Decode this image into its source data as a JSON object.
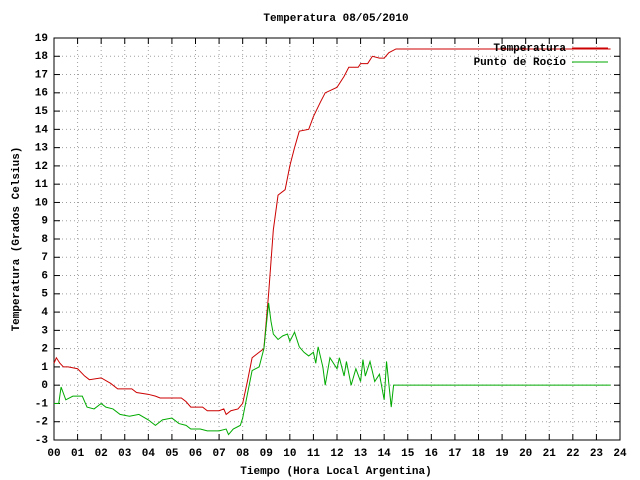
{
  "chart_data": {
    "type": "line",
    "title": "Temperatura 08/05/2010",
    "x_label": "Tiempo (Hora Local Argentina)",
    "y_label": "Temperatura (Grados Celsius)",
    "xlim": [
      0,
      24
    ],
    "xticks": [
      {
        "value": 0,
        "label": "00"
      },
      {
        "value": 1,
        "label": "01"
      },
      {
        "value": 2,
        "label": "02"
      },
      {
        "value": 3,
        "label": "03"
      },
      {
        "value": 4,
        "label": "04"
      },
      {
        "value": 5,
        "label": "05"
      },
      {
        "value": 6,
        "label": "06"
      },
      {
        "value": 7,
        "label": "07"
      },
      {
        "value": 8,
        "label": "08"
      },
      {
        "value": 9,
        "label": "09"
      },
      10,
      11,
      12,
      13,
      14,
      15,
      16,
      17,
      18,
      19,
      20,
      21,
      22,
      23,
      24
    ],
    "ylim": [
      -3,
      19
    ],
    "yticks": [
      -3,
      -2,
      -1,
      0,
      1,
      2,
      3,
      4,
      5,
      6,
      7,
      8,
      9,
      10,
      11,
      12,
      13,
      14,
      15,
      16,
      17,
      18,
      19
    ],
    "grid": true,
    "legend": "top-right",
    "series": [
      {
        "name": "Temperatura",
        "color": "#cc0000",
        "x": [
          0,
          0.1,
          0.25,
          0.4,
          0.6,
          1.0,
          1.3,
          1.5,
          2.0,
          2.4,
          2.7,
          3.0,
          3.3,
          3.5,
          4.0,
          4.3,
          4.5,
          5.0,
          5.4,
          5.6,
          5.8,
          6.0,
          6.3,
          6.5,
          7.0,
          7.2,
          7.3,
          7.5,
          7.8,
          8.0,
          8.2,
          8.4,
          8.7,
          8.9,
          9.1,
          9.3,
          9.5,
          9.8,
          10.0,
          10.2,
          10.4,
          10.8,
          11.0,
          11.3,
          11.5,
          12.0,
          12.3,
          12.5,
          12.9,
          13.0,
          13.3,
          13.5,
          13.8,
          14.0,
          14.2,
          14.5,
          23.6
        ],
        "values": [
          1.2,
          1.5,
          1.2,
          1.0,
          1.0,
          0.9,
          0.5,
          0.3,
          0.4,
          0.1,
          -0.2,
          -0.2,
          -0.2,
          -0.4,
          -0.5,
          -0.6,
          -0.7,
          -0.7,
          -0.7,
          -0.9,
          -1.2,
          -1.2,
          -1.2,
          -1.4,
          -1.4,
          -1.3,
          -1.6,
          -1.4,
          -1.3,
          -1.0,
          0.2,
          1.5,
          1.8,
          2.0,
          5.0,
          8.5,
          10.4,
          10.7,
          12.0,
          13.0,
          13.9,
          14.0,
          14.7,
          15.5,
          16.0,
          16.3,
          16.9,
          17.4,
          17.4,
          17.6,
          17.6,
          18.0,
          17.9,
          17.9,
          18.2,
          18.4,
          18.4
        ]
      },
      {
        "name": "Punto de Rocío",
        "color": "#00aa00",
        "x": [
          0,
          0.2,
          0.3,
          0.5,
          0.8,
          1.2,
          1.4,
          1.7,
          2.0,
          2.2,
          2.5,
          2.8,
          3.2,
          3.6,
          4.0,
          4.3,
          4.6,
          5.0,
          5.3,
          5.6,
          5.8,
          6.2,
          6.5,
          7.0,
          7.3,
          7.4,
          7.6,
          7.9,
          8.0,
          8.2,
          8.4,
          8.7,
          8.9,
          9.1,
          9.2,
          9.3,
          9.5,
          9.7,
          9.9,
          10.0,
          10.2,
          10.4,
          10.6,
          10.8,
          11.0,
          11.1,
          11.2,
          11.4,
          11.5,
          11.7,
          12.0,
          12.1,
          12.3,
          12.4,
          12.6,
          12.8,
          13.0,
          13.1,
          13.2,
          13.4,
          13.6,
          13.8,
          14.0,
          14.1,
          14.3,
          14.4,
          14.6,
          23.6
        ],
        "values": [
          -1.0,
          -1.0,
          -0.1,
          -0.8,
          -0.6,
          -0.6,
          -1.2,
          -1.3,
          -1.0,
          -1.2,
          -1.3,
          -1.6,
          -1.7,
          -1.6,
          -1.9,
          -2.2,
          -1.9,
          -1.8,
          -2.1,
          -2.2,
          -2.4,
          -2.4,
          -2.5,
          -2.5,
          -2.4,
          -2.7,
          -2.4,
          -2.2,
          -1.8,
          -0.5,
          0.8,
          1.0,
          2.0,
          4.5,
          3.5,
          2.8,
          2.5,
          2.7,
          2.8,
          2.4,
          2.9,
          2.1,
          1.8,
          1.6,
          1.8,
          1.2,
          2.1,
          1.0,
          0.0,
          1.5,
          0.9,
          1.5,
          0.5,
          1.3,
          0.0,
          0.9,
          0.2,
          1.4,
          0.5,
          1.3,
          0.2,
          0.6,
          -0.8,
          1.3,
          -1.2,
          0.0,
          0.0,
          0.0
        ]
      }
    ]
  }
}
